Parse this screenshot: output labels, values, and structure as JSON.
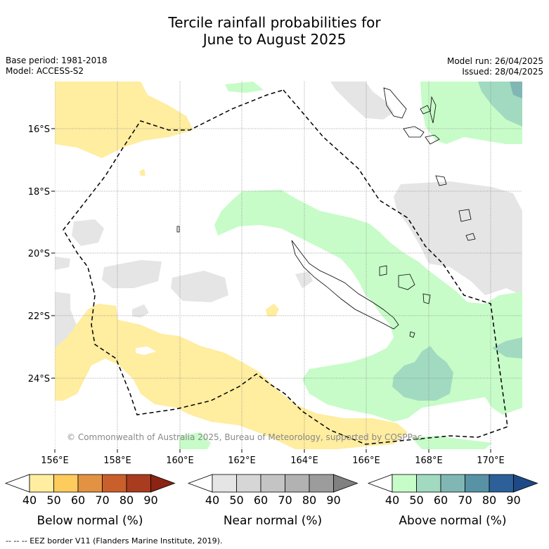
{
  "title_line1": "Tercile rainfall probabilities for",
  "title_line2": "June to August 2025",
  "meta_left": [
    "Base period: 1981-2018",
    "Model: ACCESS-S2"
  ],
  "meta_right": [
    "Model run: 26/04/2025",
    "Issued: 28/04/2025"
  ],
  "copyright": "© Commonwealth of Australia 2025, Bureau of Meteorology, supported by COSPPac",
  "lat_labels": [
    "16°S",
    "18°S",
    "20°S",
    "22°S",
    "24°S"
  ],
  "lon_labels": [
    "156°E",
    "158°E",
    "160°E",
    "162°E",
    "164°E",
    "166°E",
    "168°E",
    "170°E"
  ],
  "colorbars": [
    {
      "name": "Below normal (%)",
      "ticks": [
        "40",
        "50",
        "60",
        "70",
        "80",
        "90"
      ],
      "colors": [
        "#ffffff",
        "#ffeda0",
        "#fecc5c",
        "#e39244",
        "#c95f2a",
        "#a93b1f",
        "#8b2412"
      ]
    },
    {
      "name": "Near normal (%)",
      "ticks": [
        "40",
        "50",
        "60",
        "70",
        "80",
        "90"
      ],
      "colors": [
        "#ffffff",
        "#e5e5e5",
        "#d6d6d6",
        "#c4c4c4",
        "#b2b2b2",
        "#9c9c9c",
        "#808080"
      ]
    },
    {
      "name": "Above normal (%)",
      "ticks": [
        "40",
        "50",
        "60",
        "70",
        "80",
        "90"
      ],
      "colors": [
        "#ffffff",
        "#c7fcc8",
        "#a1dac0",
        "#80b7b4",
        "#5792a5",
        "#2d5f98",
        "#1d4a86"
      ]
    }
  ],
  "footer": "--  --  -- EEZ border V11 (Flanders Marine Institute, 2019)."
}
